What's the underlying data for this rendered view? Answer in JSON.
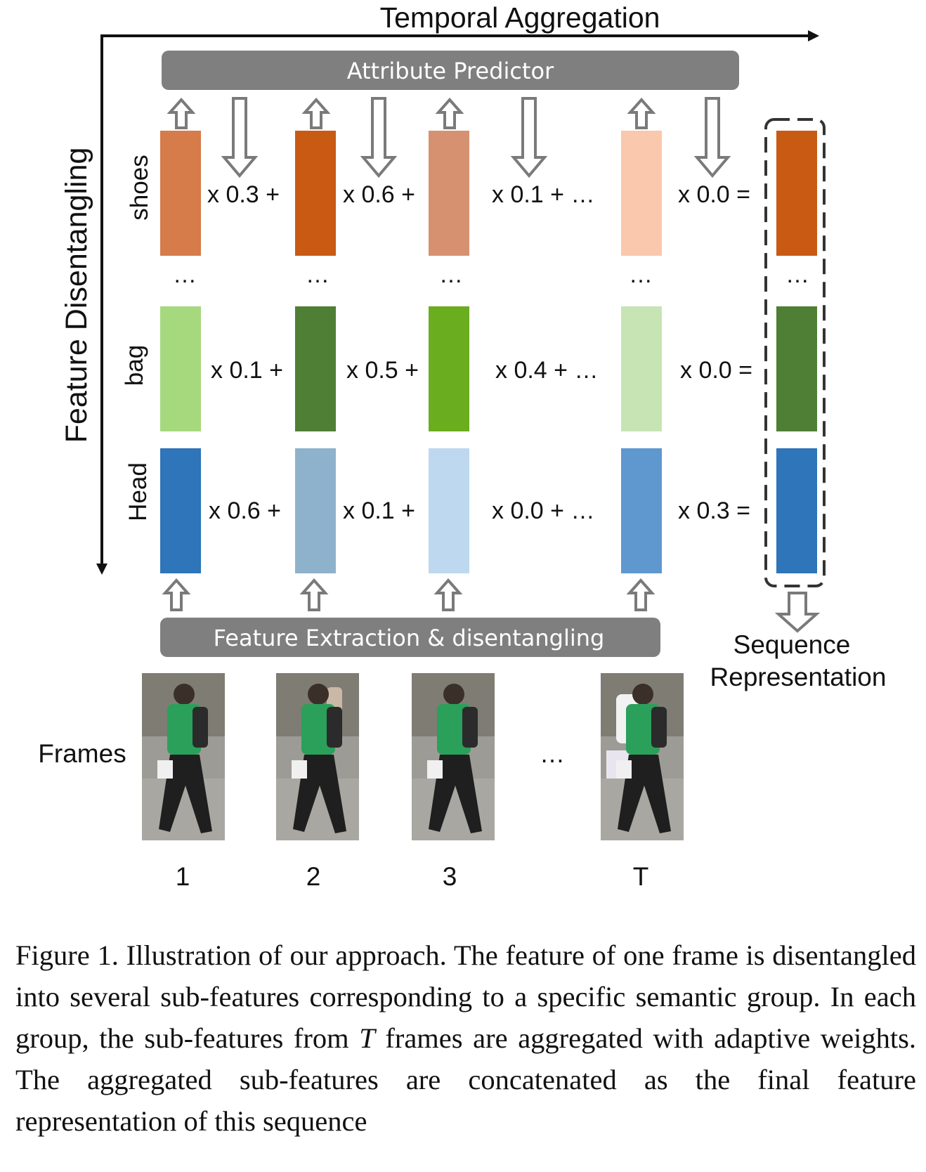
{
  "axes": {
    "horizontal_label": "Temporal Aggregation",
    "vertical_label": "Feature Disentangling"
  },
  "modules": {
    "attribute_predictor": "Attribute Predictor",
    "feature_extraction": "Feature Extraction & disentangling"
  },
  "rows": [
    {
      "label": "shoes",
      "weights": [
        "x 0.3 +",
        "x 0.6 +",
        "x 0.1 + …",
        "x 0.0 ="
      ],
      "colors": [
        "#d67b4a",
        "#c95a14",
        "#d69171",
        "#f9c8ad",
        "#c95a14"
      ]
    },
    {
      "label": "bag",
      "weights": [
        "x 0.1 +",
        "x 0.5 +",
        "x 0.4 + …",
        "x 0.0 ="
      ],
      "colors": [
        "#a6d97d",
        "#4e7f35",
        "#6aad1f",
        "#c6e4b4",
        "#4e7f35"
      ]
    },
    {
      "label": "Head",
      "weights": [
        "x 0.6 +",
        "x 0.1 +",
        "x 0.0 + …",
        "x 0.3 ="
      ],
      "colors": [
        "#2e75b9",
        "#8fb2cc",
        "#bdd8ef",
        "#5f97cf",
        "#2e75b9"
      ]
    }
  ],
  "ellipsis": "…",
  "frames": {
    "label": "Frames",
    "indices": [
      "1",
      "2",
      "3",
      "T"
    ]
  },
  "sequence_representation": {
    "line1": "Sequence",
    "line2": "Representation"
  },
  "caption": {
    "part1": "Figure 1. Illustration of our approach. The feature of one frame is disentangled into several sub-features corresponding to a specific semantic group. In each group, the sub-features from ",
    "italic_T": "T",
    "part2": " frames are aggregated with adaptive weights. The aggregated sub-features are concatenated as the final feature representation of this sequence"
  }
}
